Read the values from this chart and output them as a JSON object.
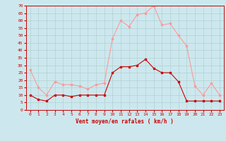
{
  "x": [
    0,
    1,
    2,
    3,
    4,
    5,
    6,
    7,
    8,
    9,
    10,
    11,
    12,
    13,
    14,
    15,
    16,
    17,
    18,
    19,
    20,
    21,
    22,
    23
  ],
  "wind_avg": [
    10,
    7,
    6,
    10,
    10,
    9,
    10,
    10,
    10,
    10,
    25,
    29,
    29,
    30,
    34,
    28,
    25,
    25,
    19,
    6,
    6,
    6,
    6,
    6
  ],
  "wind_gust": [
    27,
    15,
    10,
    19,
    17,
    17,
    16,
    14,
    17,
    18,
    48,
    60,
    56,
    64,
    65,
    70,
    57,
    58,
    50,
    43,
    16,
    10,
    18,
    10
  ],
  "xlabel": "Vent moyen/en rafales ( km/h )",
  "ylim": [
    0,
    70
  ],
  "yticks": [
    0,
    5,
    10,
    15,
    20,
    25,
    30,
    35,
    40,
    45,
    50,
    55,
    60,
    65,
    70
  ],
  "xticks": [
    0,
    1,
    2,
    3,
    4,
    5,
    6,
    7,
    8,
    9,
    10,
    11,
    12,
    13,
    14,
    15,
    16,
    17,
    18,
    19,
    20,
    21,
    22,
    23
  ],
  "bg_color": "#cce8ee",
  "grid_color": "#aacccc",
  "line_avg_color": "#cc0000",
  "line_gust_color": "#ff9999",
  "axis_color": "#cc0000",
  "tick_label_color": "#cc0000",
  "xlabel_color": "#cc0000"
}
